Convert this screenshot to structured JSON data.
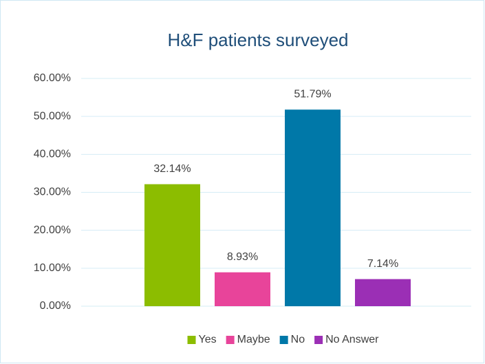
{
  "chart_data": {
    "type": "bar",
    "title": "H&F patients surveyed",
    "categories": [
      "Yes",
      "Maybe",
      "No",
      "No Answer"
    ],
    "values": [
      32.14,
      8.93,
      51.79,
      7.14
    ],
    "value_labels": [
      "32.14%",
      "8.93%",
      "51.79%",
      "7.14%"
    ],
    "colors": [
      "#8cbd00",
      "#e8449a",
      "#0078a8",
      "#9b2fb5"
    ],
    "ylim": [
      0,
      60
    ],
    "yticks": [
      {
        "value": 0,
        "label": "0.00%"
      },
      {
        "value": 10,
        "label": "10.00%"
      },
      {
        "value": 20,
        "label": "20.00%"
      },
      {
        "value": 30,
        "label": "30.00%"
      },
      {
        "value": 40,
        "label": "40.00%"
      },
      {
        "value": 50,
        "label": "50.00%"
      },
      {
        "value": 60,
        "label": "60.00%"
      }
    ],
    "grid": true,
    "legend": "bottom"
  }
}
